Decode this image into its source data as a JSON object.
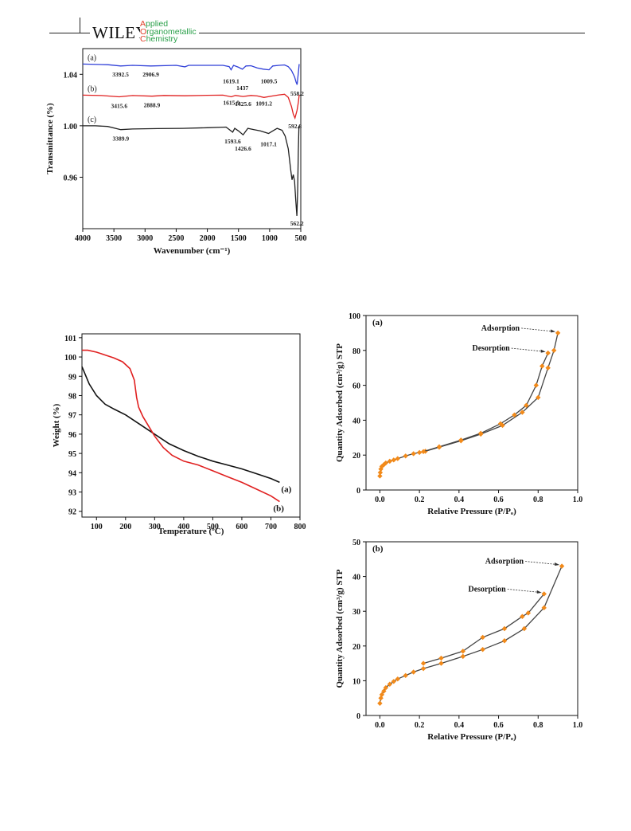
{
  "header": {
    "brand": "WILEY",
    "journal_lines": [
      {
        "cap": "A",
        "rest": "pplied"
      },
      {
        "cap": "O",
        "rest": "rganometallic"
      },
      {
        "cap": "C",
        "rest": "hemistry"
      }
    ]
  },
  "chart_data": [
    {
      "id": "ftir",
      "type": "line",
      "xlabel": "Wavenumber (cm⁻¹)",
      "ylabel": "Transmittance (%)",
      "xlim": [
        4000,
        500
      ],
      "ylim": [
        0.92,
        1.06
      ],
      "xticks": [
        4000,
        3500,
        3000,
        2500,
        2000,
        1500,
        1000,
        500
      ],
      "yticks": [
        {
          "v": 0.96,
          "label": "0.96"
        },
        {
          "v": 1.0,
          "label": "1.00"
        },
        {
          "v": 1.04,
          "label": "1.04"
        }
      ],
      "colors": {
        "a": "#2f3fd8",
        "b": "#e02020",
        "c": "#202020"
      },
      "series": [
        {
          "name": "(a)",
          "key": "a",
          "points": [
            [
              4000,
              1.048
            ],
            [
              3600,
              1.0475
            ],
            [
              3392.5,
              1.0465
            ],
            [
              3200,
              1.047
            ],
            [
              2906.9,
              1.0465
            ],
            [
              2500,
              1.047
            ],
            [
              2360,
              1.0458
            ],
            [
              2300,
              1.047
            ],
            [
              1750,
              1.047
            ],
            [
              1650,
              1.046
            ],
            [
              1619.1,
              1.0435
            ],
            [
              1580,
              1.047
            ],
            [
              1500,
              1.0455
            ],
            [
              1437,
              1.044
            ],
            [
              1380,
              1.0465
            ],
            [
              1300,
              1.0467
            ],
            [
              1200,
              1.045
            ],
            [
              1100,
              1.044
            ],
            [
              1009.5,
              1.0435
            ],
            [
              950,
              1.0465
            ],
            [
              850,
              1.047
            ],
            [
              760,
              1.0473
            ],
            [
              700,
              1.046
            ],
            [
              650,
              1.043
            ],
            [
              600,
              1.038
            ],
            [
              575,
              1.034
            ],
            [
              558.2,
              1.032
            ],
            [
              540,
              1.041
            ],
            [
              525,
              1.048
            ]
          ],
          "peaks": [
            {
              "label": "3392.5",
              "x": 3392.5
            },
            {
              "label": "2906.9",
              "x": 2906.9
            },
            {
              "label": "1619.1",
              "x": 1619.1
            },
            {
              "label": "1437",
              "x": 1437
            },
            {
              "label": "1009.5",
              "x": 1009.5
            },
            {
              "label": "558.2",
              "x": 558.2
            }
          ]
        },
        {
          "name": "(b)",
          "key": "b",
          "points": [
            [
              4000,
              1.0238
            ],
            [
              3700,
              1.0235
            ],
            [
              3415.6,
              1.0225
            ],
            [
              3200,
              1.0235
            ],
            [
              2888.9,
              1.023
            ],
            [
              2700,
              1.0236
            ],
            [
              2360,
              1.0233
            ],
            [
              2000,
              1.0237
            ],
            [
              1750,
              1.0238
            ],
            [
              1615.9,
              1.0225
            ],
            [
              1550,
              1.0236
            ],
            [
              1425.6,
              1.0228
            ],
            [
              1300,
              1.0236
            ],
            [
              1200,
              1.0232
            ],
            [
              1091.2,
              1.022
            ],
            [
              950,
              1.0232
            ],
            [
              850,
              1.024
            ],
            [
              760,
              1.0245
            ],
            [
              700,
              1.022
            ],
            [
              650,
              1.015
            ],
            [
              620,
              1.009
            ],
            [
              592.8,
              1.006
            ],
            [
              560,
              1.012
            ],
            [
              540,
              1.018
            ],
            [
              525,
              1.024
            ]
          ],
          "peaks": [
            {
              "label": "3415.6",
              "x": 3415.6
            },
            {
              "label": "2888.9",
              "x": 2888.9
            },
            {
              "label": "1615.9",
              "x": 1615.9
            },
            {
              "label": "1425.6",
              "x": 1425.6
            },
            {
              "label": "1091.2",
              "x": 1091.2
            },
            {
              "label": "592.8",
              "x": 592.8
            }
          ]
        },
        {
          "name": "(c)",
          "key": "c",
          "points": [
            [
              4000,
              1.0
            ],
            [
              3800,
              1.0
            ],
            [
              3600,
              0.9995
            ],
            [
              3389.9,
              0.997
            ],
            [
              3200,
              0.9975
            ],
            [
              2800,
              0.9978
            ],
            [
              2400,
              0.998
            ],
            [
              2000,
              0.9985
            ],
            [
              1700,
              0.999
            ],
            [
              1593.6,
              0.995
            ],
            [
              1560,
              0.998
            ],
            [
              1500,
              0.996
            ],
            [
              1426.6,
              0.993
            ],
            [
              1350,
              0.998
            ],
            [
              1250,
              0.997
            ],
            [
              1150,
              0.996
            ],
            [
              1017.1,
              0.994
            ],
            [
              950,
              0.996
            ],
            [
              880,
              0.998
            ],
            [
              800,
              0.9965
            ],
            [
              750,
              0.992
            ],
            [
              700,
              0.982
            ],
            [
              660,
              0.965
            ],
            [
              640,
              0.958
            ],
            [
              620,
              0.962
            ],
            [
              600,
              0.957
            ],
            [
              580,
              0.942
            ],
            [
              562.2,
              0.93
            ],
            [
              550,
              0.95
            ],
            [
              540,
              0.98
            ],
            [
              530,
              1.0
            ]
          ],
          "peaks": [
            {
              "label": "3389.9",
              "x": 3389.9
            },
            {
              "label": "1593.6",
              "x": 1593.6
            },
            {
              "label": "1426.6",
              "x": 1426.6
            },
            {
              "label": "1017.1",
              "x": 1017.1
            },
            {
              "label": "562.2",
              "x": 562.2
            }
          ]
        }
      ]
    },
    {
      "id": "tga",
      "type": "line",
      "xlabel": "Temperature (ºC)",
      "ylabel": "Weight (%)",
      "xlim": [
        50,
        800
      ],
      "ylim": [
        91.7,
        101.2
      ],
      "xticks": [
        100,
        200,
        300,
        400,
        500,
        600,
        700,
        800
      ],
      "yticks": [
        92,
        93,
        94,
        95,
        96,
        97,
        98,
        99,
        100,
        101
      ],
      "series": [
        {
          "name": "(a)",
          "color": "#111111",
          "points": [
            [
              50,
              99.5
            ],
            [
              75,
              98.6
            ],
            [
              100,
              98.0
            ],
            [
              130,
              97.55
            ],
            [
              160,
              97.3
            ],
            [
              200,
              97.0
            ],
            [
              250,
              96.5
            ],
            [
              300,
              96.0
            ],
            [
              350,
              95.5
            ],
            [
              400,
              95.15
            ],
            [
              450,
              94.85
            ],
            [
              500,
              94.6
            ],
            [
              550,
              94.4
            ],
            [
              600,
              94.2
            ],
            [
              650,
              93.95
            ],
            [
              700,
              93.7
            ],
            [
              730,
              93.5
            ]
          ]
        },
        {
          "name": "(b)",
          "color": "#e02020",
          "points": [
            [
              50,
              100.35
            ],
            [
              70,
              100.35
            ],
            [
              100,
              100.25
            ],
            [
              130,
              100.1
            ],
            [
              160,
              99.95
            ],
            [
              190,
              99.75
            ],
            [
              215,
              99.4
            ],
            [
              230,
              98.8
            ],
            [
              238,
              97.9
            ],
            [
              245,
              97.4
            ],
            [
              260,
              96.9
            ],
            [
              280,
              96.4
            ],
            [
              300,
              95.9
            ],
            [
              330,
              95.3
            ],
            [
              360,
              94.9
            ],
            [
              400,
              94.6
            ],
            [
              450,
              94.4
            ],
            [
              500,
              94.1
            ],
            [
              550,
              93.8
            ],
            [
              600,
              93.5
            ],
            [
              650,
              93.15
            ],
            [
              700,
              92.8
            ],
            [
              730,
              92.5
            ]
          ]
        }
      ]
    },
    {
      "id": "bet-a",
      "panel": "(a)",
      "type": "line",
      "xlabel": "Relative Pressure (P/Pₒ)",
      "ylabel": "Quantity Adsorbed (cm³/g) STP",
      "xlim": [
        -0.07,
        1.0
      ],
      "ylim": [
        0,
        100
      ],
      "xticks": [
        0.0,
        0.2,
        0.4,
        0.6,
        0.8,
        1.0
      ],
      "yticks": [
        0,
        20,
        40,
        60,
        80,
        100
      ],
      "annotations": [
        {
          "text": "Adsorption",
          "x": 0.9,
          "y": 90
        },
        {
          "text": "Desorption",
          "x": 0.85,
          "y": 78.5
        }
      ],
      "series": [
        {
          "name": "Adsorption",
          "points": [
            [
              0.0,
              8
            ],
            [
              0.002,
              10
            ],
            [
              0.005,
              12
            ],
            [
              0.01,
              13.5
            ],
            [
              0.02,
              14.5
            ],
            [
              0.03,
              15.5
            ],
            [
              0.05,
              16.5
            ],
            [
              0.07,
              17.2
            ],
            [
              0.09,
              18
            ],
            [
              0.13,
              19.5
            ],
            [
              0.17,
              20.8
            ],
            [
              0.2,
              21.5
            ],
            [
              0.23,
              22.2
            ],
            [
              0.3,
              24.5
            ],
            [
              0.41,
              28.2
            ],
            [
              0.51,
              32
            ],
            [
              0.62,
              37
            ],
            [
              0.72,
              44.5
            ],
            [
              0.8,
              53
            ],
            [
              0.85,
              70
            ],
            [
              0.88,
              80
            ],
            [
              0.9,
              90
            ]
          ]
        },
        {
          "name": "Desorption",
          "points": [
            [
              0.22,
              22
            ],
            [
              0.3,
              24.8
            ],
            [
              0.41,
              28.6
            ],
            [
              0.51,
              32.5
            ],
            [
              0.61,
              38
            ],
            [
              0.68,
              43
            ],
            [
              0.74,
              48.5
            ],
            [
              0.79,
              60
            ],
            [
              0.82,
              71
            ],
            [
              0.85,
              78.5
            ]
          ]
        }
      ]
    },
    {
      "id": "bet-b",
      "panel": "(b)",
      "type": "line",
      "xlabel": "Relative Pressure (P/Pₒ)",
      "ylabel": "Quantity Adsorbed (cm³/g) STP",
      "xlim": [
        -0.07,
        1.0
      ],
      "ylim": [
        0,
        50
      ],
      "xticks": [
        0.0,
        0.2,
        0.4,
        0.6,
        0.8,
        1.0
      ],
      "yticks": [
        0,
        10,
        20,
        30,
        40,
        50
      ],
      "annotations": [
        {
          "text": "Adsorption",
          "x": 0.92,
          "y": 43
        },
        {
          "text": "Desorption",
          "x": 0.83,
          "y": 35
        }
      ],
      "series": [
        {
          "name": "Adsorption",
          "points": [
            [
              0.0,
              3.5
            ],
            [
              0.005,
              5
            ],
            [
              0.01,
              6
            ],
            [
              0.02,
              7
            ],
            [
              0.03,
              8
            ],
            [
              0.05,
              9
            ],
            [
              0.07,
              9.8
            ],
            [
              0.09,
              10.5
            ],
            [
              0.13,
              11.5
            ],
            [
              0.17,
              12.5
            ],
            [
              0.22,
              13.5
            ],
            [
              0.31,
              15
            ],
            [
              0.42,
              17
            ],
            [
              0.52,
              19
            ],
            [
              0.63,
              21.5
            ],
            [
              0.73,
              25
            ],
            [
              0.83,
              31
            ],
            [
              0.92,
              43
            ]
          ]
        },
        {
          "name": "Desorption",
          "points": [
            [
              0.22,
              15
            ],
            [
              0.31,
              16.5
            ],
            [
              0.42,
              18.5
            ],
            [
              0.52,
              22.5
            ],
            [
              0.63,
              25
            ],
            [
              0.72,
              28.5
            ],
            [
              0.75,
              29.5
            ],
            [
              0.83,
              35
            ]
          ]
        }
      ]
    }
  ]
}
